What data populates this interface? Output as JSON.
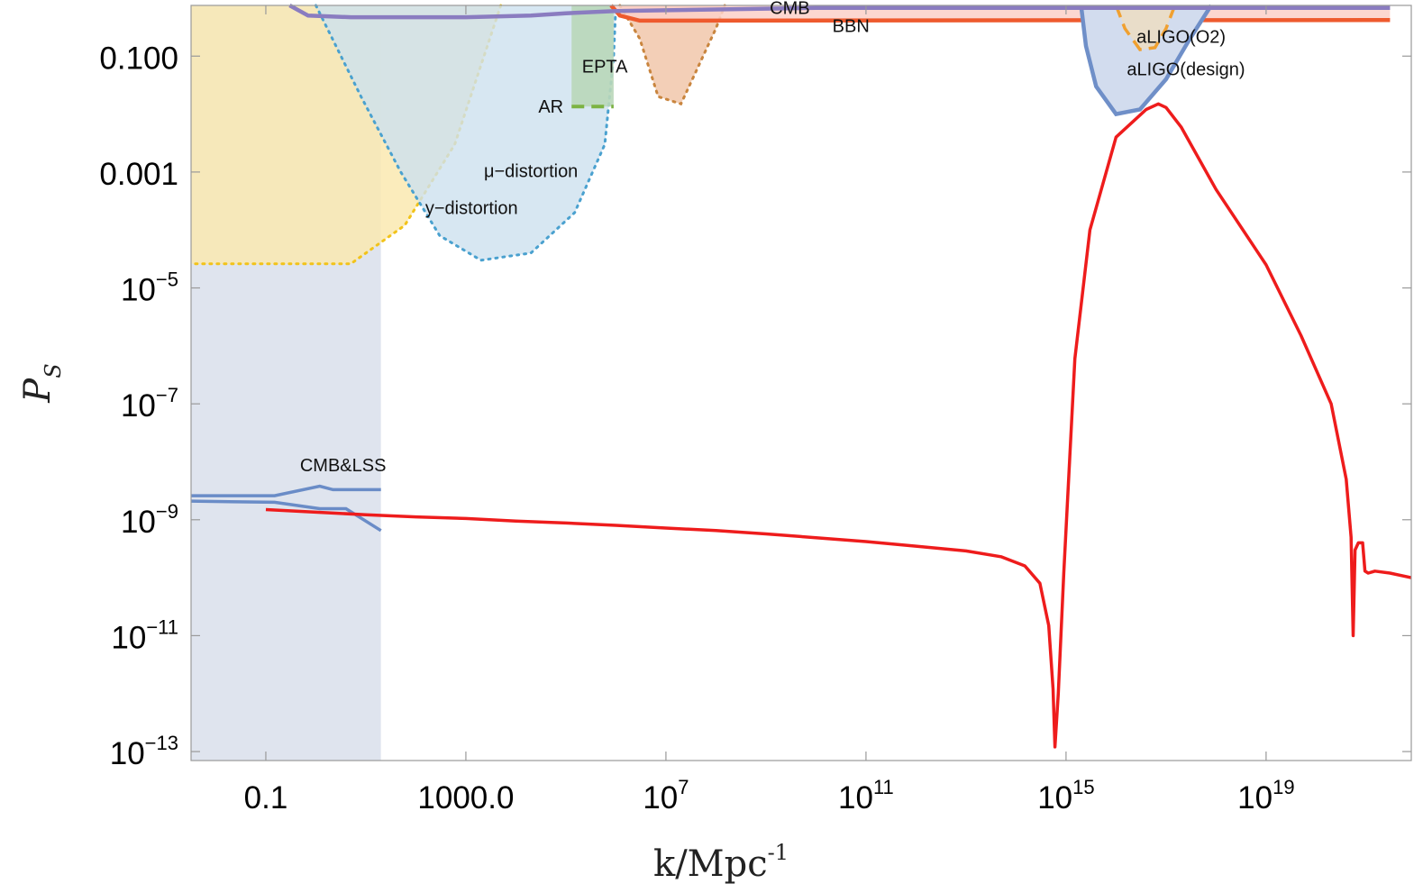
{
  "chart_data": {
    "type": "line",
    "title": "",
    "xlabel": "k/Mpc",
    "xlabel_exponent": "-1",
    "ylabel": "P",
    "ylabel_sub": "S",
    "x_scale": "log",
    "y_scale": "log",
    "xlim": [
      0.0032,
      8e+21
    ],
    "ylim": [
      7e-14,
      0.75
    ],
    "grid": false,
    "legend": "none",
    "x_ticks": [
      {
        "value": 0.1,
        "label": "0.1"
      },
      {
        "value": 1000,
        "label": "1000.0"
      },
      {
        "value": 10000000.0,
        "base": "10",
        "exp": "7"
      },
      {
        "value": 100000000000.0,
        "base": "10",
        "exp": "11"
      },
      {
        "value": 1000000000000000.0,
        "base": "10",
        "exp": "15"
      },
      {
        "value": 1e+19,
        "base": "10",
        "exp": "19"
      }
    ],
    "y_ticks": [
      {
        "value": 0.1,
        "label": "0.100"
      },
      {
        "value": 0.001,
        "label": "0.001"
      },
      {
        "value": 1e-05,
        "base": "10",
        "exp": "−5"
      },
      {
        "value": 1e-07,
        "base": "10",
        "exp": "−7"
      },
      {
        "value": 1e-09,
        "base": "10",
        "exp": "−9"
      },
      {
        "value": 1e-11,
        "base": "10",
        "exp": "−11"
      },
      {
        "value": 1e-13,
        "base": "10",
        "exp": "−13"
      }
    ],
    "series": [
      {
        "color": "#ee1c1c",
        "x": [
          0.1,
          1,
          10,
          100,
          1000,
          10000.0,
          100000.0,
          1000000.0,
          10000000.0,
          100000000.0,
          1000000000.0,
          10000000000.0,
          100000000000.0,
          1000000000000.0,
          10000000000000.0,
          50000000000000.0,
          150000000000000.0,
          300000000000000.0,
          450000000000000.0,
          550000000000000.0,
          600000000000000.0,
          700000000000000.0,
          900000000000000.0,
          1500000000000000.0,
          3000000000000000.0,
          1e+16,
          4e+16,
          7e+16,
          1e+17,
          2e+17,
          1e+18,
          1e+19,
          5e+19,
          2e+20,
          4e+20,
          5e+20,
          5.5e+20,
          6e+20,
          7e+20,
          8.5e+20,
          9.5e+20,
          1.1e+21,
          1.5e+21,
          3e+21,
          8e+21
        ],
        "y": [
          1.5e-09,
          1.35e-09,
          1.22e-09,
          1.12e-09,
          1.05e-09,
          9.5e-10,
          8.8e-10,
          8e-10,
          7.2e-10,
          6.5e-10,
          5.7e-10,
          4.9e-10,
          4.2e-10,
          3.5e-10,
          2.9e-10,
          2.3e-10,
          1.6e-10,
          8e-11,
          1.5e-11,
          1.2e-12,
          1.2e-13,
          1e-12,
          1.2e-10,
          6e-07,
          0.0001,
          0.004,
          0.012,
          0.015,
          0.013,
          0.006,
          0.0005,
          2.5e-05,
          1.5e-06,
          1e-07,
          5e-09,
          5e-10,
          1e-11,
          3e-10,
          4e-10,
          4e-10,
          1.3e-10,
          1.2e-10,
          1.3e-10,
          1.2e-10,
          1e-10
        ]
      }
    ],
    "annotations": [
      {
        "text": "CMB",
        "x": 3000000000.0,
        "y": 0.53
      },
      {
        "text": "BBN",
        "x": 50000000000.0,
        "y": 0.26
      },
      {
        "text": "aLIGO(O2)",
        "x": 2e+17,
        "y": 0.17
      },
      {
        "text": "aLIGO(design)",
        "x": 2.5e+17,
        "y": 0.047
      },
      {
        "text": "EPTA",
        "x": 600000.0,
        "y": 0.052
      },
      {
        "text": "AR",
        "x": 50000.0,
        "y": 0.0105
      },
      {
        "text": "μ−distortion",
        "x": 20000.0,
        "y": 0.00082
      },
      {
        "text": "y−distortion",
        "x": 1300,
        "y": 0.00019
      },
      {
        "text": "CMB&LSS",
        "x": 3.5,
        "y": 6.8e-09
      }
    ],
    "regions": [
      {
        "name": "CMB&LSS",
        "fill": "#dfe4ee",
        "x": [
          0.0032,
          20
        ],
        "y": [
          7e-14,
          0.75
        ]
      },
      {
        "name": "y-distortion",
        "fill": "#fae9b0",
        "stroke": "#f2c31a",
        "x": [
          0.0032,
          0.4,
          4000
        ],
        "y_top": 0.75,
        "y_bottom": 2.5e-05
      },
      {
        "name": "mu-distortion",
        "fill": "#cde1ef",
        "stroke": "#4aa1cf"
      },
      {
        "name": "AR",
        "fill": "#b9d7b9",
        "stroke": "#7cb342"
      },
      {
        "name": "EPTA",
        "fill": "#f3cfb7",
        "stroke": "#c9853e"
      },
      {
        "name": "CMB",
        "stroke": "#8a7cc0"
      },
      {
        "name": "BBN",
        "fill": "#fbd0c8",
        "stroke": "#ee5a2e"
      },
      {
        "name": "aLIGO(design)",
        "fill": "#d2dcee",
        "stroke": "#6f8fc8"
      },
      {
        "name": "aLIGO(O2)",
        "stroke": "#f0a030"
      }
    ]
  }
}
